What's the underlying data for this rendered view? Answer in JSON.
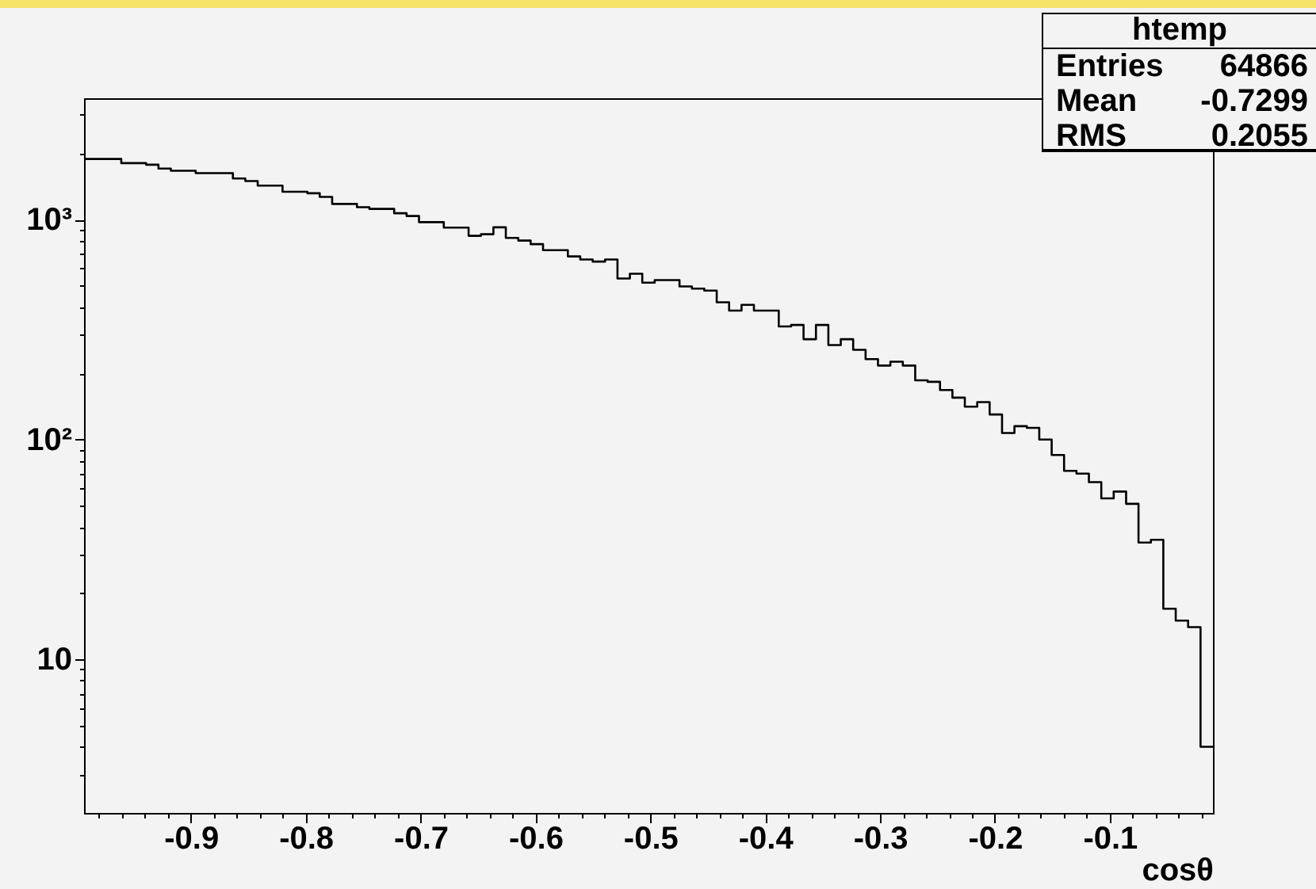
{
  "chart_data": {
    "type": "histogram",
    "xlabel": "cosθ",
    "bins": [
      -0.993,
      -0.9822,
      -0.9714,
      -0.9606,
      -0.9498,
      -0.939,
      -0.9282,
      -0.9174,
      -0.9066,
      -0.8958,
      -0.885,
      -0.8742,
      -0.8634,
      -0.8526,
      -0.8418,
      -0.831,
      -0.8202,
      -0.8094,
      -0.7986,
      -0.7878,
      -0.777,
      -0.7662,
      -0.7554,
      -0.7446,
      -0.7338,
      -0.723,
      -0.7122,
      -0.7014,
      -0.6906,
      -0.6798,
      -0.669,
      -0.6582,
      -0.6474,
      -0.6366,
      -0.6258,
      -0.615,
      -0.6042,
      -0.5934,
      -0.5826,
      -0.5718,
      -0.561,
      -0.5502,
      -0.5394,
      -0.5286,
      -0.5178,
      -0.507,
      -0.4962,
      -0.4854,
      -0.4746,
      -0.4638,
      -0.453,
      -0.4422,
      -0.4314,
      -0.4206,
      -0.4098,
      -0.399,
      -0.3882,
      -0.3774,
      -0.3666,
      -0.3558,
      -0.345,
      -0.3342,
      -0.3234,
      -0.3126,
      -0.3018,
      -0.291,
      -0.2802,
      -0.2694,
      -0.2586,
      -0.2478,
      -0.237,
      -0.2262,
      -0.2154,
      -0.2046,
      -0.1938,
      -0.183,
      -0.1722,
      -0.1614,
      -0.1506,
      -0.1398,
      -0.129,
      -0.1182,
      -0.1074,
      -0.0966,
      -0.0858,
      -0.075,
      -0.0642,
      -0.0534,
      -0.0426,
      -0.0318,
      -0.021,
      -0.0102
    ],
    "values": [
      1890,
      1890,
      1890,
      1810,
      1810,
      1780,
      1710,
      1670,
      1670,
      1630,
      1630,
      1630,
      1540,
      1500,
      1430,
      1430,
      1340,
      1340,
      1320,
      1270,
      1180,
      1180,
      1140,
      1120,
      1120,
      1070,
      1040,
      975,
      975,
      921,
      921,
      845,
      859,
      924,
      827,
      804,
      774,
      727,
      727,
      681,
      659,
      645,
      659,
      540,
      568,
      517,
      531,
      531,
      497,
      486,
      476,
      421,
      386,
      410,
      386,
      386,
      327,
      332,
      286,
      332,
      269,
      286,
      256,
      232,
      217,
      226,
      217,
      186,
      183,
      168,
      155,
      141,
      148,
      130,
      107,
      115,
      113,
      100,
      85,
      72,
      70,
      64,
      54,
      58,
      51,
      34,
      35,
      17,
      15,
      14,
      4
    ],
    "color": "#000000",
    "xlim": [
      -0.993,
      -0.0102
    ],
    "ylim": [
      2,
      3570
    ],
    "log": true,
    "xticks": [
      {
        "value": -0.98,
        "label": null
      },
      {
        "value": -0.96,
        "label": null
      },
      {
        "value": -0.94,
        "label": null
      },
      {
        "value": -0.92,
        "label": null
      },
      -0.9,
      {
        "value": -0.88,
        "label": null
      },
      {
        "value": -0.86,
        "label": null
      },
      {
        "value": -0.84,
        "label": null
      },
      {
        "value": -0.82,
        "label": null
      },
      -0.8,
      {
        "value": -0.78,
        "label": null
      },
      {
        "value": -0.76,
        "label": null
      },
      {
        "value": -0.74,
        "label": null
      },
      {
        "value": -0.72,
        "label": null
      },
      -0.7,
      {
        "value": -0.68,
        "label": null
      },
      {
        "value": -0.66,
        "label": null
      },
      {
        "value": -0.64,
        "label": null
      },
      {
        "value": -0.62,
        "label": null
      },
      -0.6,
      {
        "value": -0.58,
        "label": null
      },
      {
        "value": -0.56,
        "label": null
      },
      {
        "value": -0.54,
        "label": null
      },
      {
        "value": -0.52,
        "label": null
      },
      -0.5,
      {
        "value": -0.48,
        "label": null
      },
      {
        "value": -0.46,
        "label": null
      },
      {
        "value": -0.44,
        "label": null
      },
      {
        "value": -0.42,
        "label": null
      },
      -0.4,
      {
        "value": -0.38,
        "label": null
      },
      {
        "value": -0.36,
        "label": null
      },
      {
        "value": -0.34,
        "label": null
      },
      {
        "value": -0.32,
        "label": null
      },
      -0.3,
      {
        "value": -0.28,
        "label": null
      },
      {
        "value": -0.26,
        "label": null
      },
      {
        "value": -0.24,
        "label": null
      },
      {
        "value": -0.22,
        "label": null
      },
      -0.2,
      {
        "value": -0.18,
        "label": null
      },
      {
        "value": -0.16,
        "label": null
      },
      {
        "value": -0.14,
        "label": null
      },
      {
        "value": -0.12,
        "label": null
      },
      -0.1,
      {
        "value": -0.08,
        "label": null
      },
      {
        "value": -0.06,
        "label": null
      },
      {
        "value": -0.04,
        "label": null
      },
      {
        "value": -0.02,
        "label": null
      }
    ],
    "yticks": [
      {
        "value": 3,
        "label": null
      },
      {
        "value": 4,
        "label": null
      },
      {
        "value": 5,
        "label": null
      },
      {
        "value": 6,
        "label": null
      },
      {
        "value": 7,
        "label": null
      },
      {
        "value": 8,
        "label": null
      },
      {
        "value": 9,
        "label": null
      },
      10,
      {
        "value": 20,
        "label": null
      },
      {
        "value": 30,
        "label": null
      },
      {
        "value": 40,
        "label": null
      },
      {
        "value": 50,
        "label": null
      },
      {
        "value": 60,
        "label": null
      },
      {
        "value": 70,
        "label": null
      },
      {
        "value": 80,
        "label": null
      },
      {
        "value": 90,
        "label": null
      },
      {
        "value": 100,
        "label": "10²"
      },
      {
        "value": 200,
        "label": null
      },
      {
        "value": 300,
        "label": null
      },
      {
        "value": 400,
        "label": null
      },
      {
        "value": 500,
        "label": null
      },
      {
        "value": 600,
        "label": null
      },
      {
        "value": 700,
        "label": null
      },
      {
        "value": 800,
        "label": null
      },
      {
        "value": 900,
        "label": null
      },
      {
        "value": 1000,
        "label": "10³"
      },
      {
        "value": 2000,
        "label": null
      },
      {
        "value": 3000,
        "label": null
      }
    ],
    "annotations": [
      "htemp",
      "Entries",
      "64866",
      "Mean",
      "-0.7299",
      "RMS",
      "0.2055"
    ]
  }
}
